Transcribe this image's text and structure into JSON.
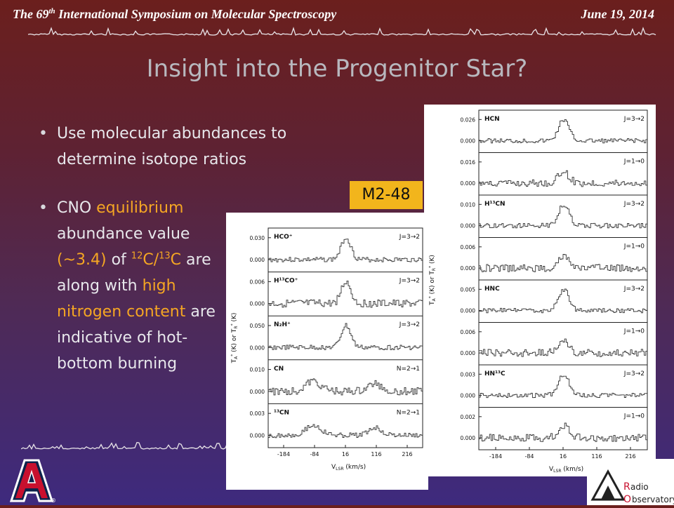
{
  "header": {
    "conference_pre": "The 69",
    "conference_sup": "th",
    "conference_post": " International Symposium on Molecular Spectroscopy",
    "date": "June 19, 2014"
  },
  "slide": {
    "title": "Insight into the Progenitor Star?",
    "bullet1": "Use molecular abundances to determine isotope ratios",
    "bullet2": {
      "t1": "CNO ",
      "t2": "equilibrium",
      "t3": " abundance value ",
      "t4": "(~3.4)",
      "t5": " of ",
      "t6": "12",
      "t7": "C/",
      "t8": "13",
      "t9": "C are along with ",
      "t10": "high nitrogen content",
      "t11": " are indicative of hot-bottom burning"
    },
    "source_label": "M2-48"
  },
  "left_panel": {
    "ylabel": "T",
    "ylabel_parts": [
      "T",
      "A",
      "*",
      " (K)   or   T",
      "R",
      "*",
      " (K)"
    ],
    "xlabel_main": "V",
    "xlabel_sub": "LSR",
    "xlabel_unit": " (km/s)",
    "xticks": [
      "-184",
      "-84",
      "16",
      "116",
      "216"
    ],
    "rows": [
      {
        "mol": "HCO⁺",
        "trans": "J=3→2",
        "top": "0.030",
        "zero": "0.000"
      },
      {
        "mol": "H¹³CO⁺",
        "trans": "J=3→2",
        "top": "0.006",
        "zero": "0.000"
      },
      {
        "mol": "N₂H⁺",
        "trans": "J=3→2",
        "top": "0.050",
        "zero": "0.000"
      },
      {
        "mol": "CN",
        "trans": "N=2→1",
        "top": "0.010",
        "zero": "0.000"
      },
      {
        "mol": "¹³CN",
        "trans": "N=2→1",
        "top": "0.003",
        "zero": "0.000"
      }
    ]
  },
  "right_panel": {
    "ylabel_parts": [
      "T",
      "A",
      "*",
      " (K)   or   T",
      "R",
      "*",
      " (K)"
    ],
    "xlabel_main": "V",
    "xlabel_sub": "LSR",
    "xlabel_unit": " (km/s)",
    "xticks": [
      "-184",
      "-84",
      "16",
      "116",
      "216"
    ],
    "rows": [
      {
        "mol": "HCN",
        "trans": "J=3→2",
        "top": "0.026",
        "zero": "0.000"
      },
      {
        "mol": "",
        "trans": "J=1→0",
        "top": "0.016",
        "zero": "0.000"
      },
      {
        "mol": "H¹³CN",
        "trans": "J=3→2",
        "top": "0.010",
        "zero": "0.000"
      },
      {
        "mol": "",
        "trans": "J=1→0",
        "top": "0.006",
        "zero": "0.000"
      },
      {
        "mol": "HNC",
        "trans": "J=3→2",
        "top": "0.005",
        "zero": "0.000"
      },
      {
        "mol": "",
        "trans": "J=1→0",
        "top": "0.006",
        "zero": "0.000"
      },
      {
        "mol": "HN¹³C",
        "trans": "J=3→2",
        "top": "0.003",
        "zero": "0.000"
      },
      {
        "mol": "",
        "trans": "J=1→0",
        "top": "0.002",
        "zero": "0.000"
      }
    ]
  },
  "logos": {
    "ua_letter": "A",
    "ua_reg": "®",
    "obs_line1_cap": "R",
    "obs_line1": "adio",
    "obs_line2_cap": "O",
    "obs_line2": "bservatory"
  },
  "colors": {
    "accent": "#f5a623",
    "label_bg": "#f2b51c",
    "ua_red": "#c8102e",
    "ua_navy": "#0c234b"
  }
}
